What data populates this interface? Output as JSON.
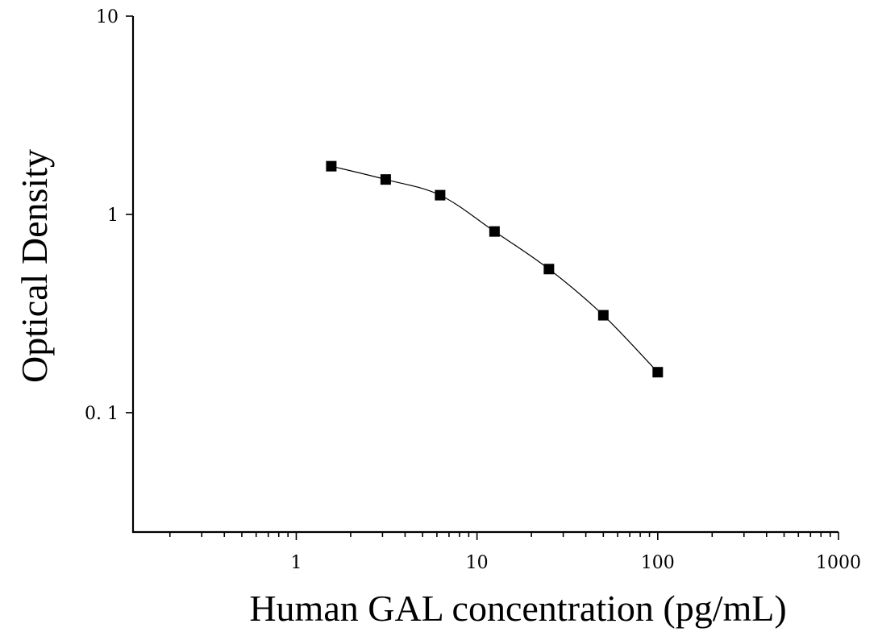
{
  "chart_data": {
    "type": "scatter",
    "title": "",
    "xlabel": "Human GAL concentration (pg/mL)",
    "ylabel": "Optical Density",
    "x_scale": "log",
    "y_scale": "log",
    "xlim": [
      0.125,
      1000
    ],
    "ylim": [
      0.025,
      10
    ],
    "x_tick_labels": [
      "1",
      "10",
      "100",
      "1000"
    ],
    "y_tick_labels": [
      "0. 1",
      "1",
      "10"
    ],
    "grid": false,
    "legend": "none",
    "series": [
      {
        "marker": "square",
        "color": "#000000",
        "x": [
          1.5625,
          3.125,
          6.25,
          12.5,
          25,
          50,
          100
        ],
        "y": [
          1.75,
          1.5,
          1.25,
          0.82,
          0.53,
          0.31,
          0.16
        ]
      }
    ]
  }
}
